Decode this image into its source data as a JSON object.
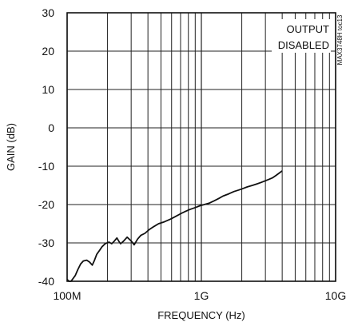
{
  "chart_data": {
    "type": "line",
    "title": "",
    "xlabel": "FREQUENCY (Hz)",
    "ylabel": "GAIN (dB)",
    "x_scale": "log",
    "xlim": [
      100000000,
      10000000000
    ],
    "ylim": [
      -40,
      30
    ],
    "x_tick_labels": [
      {
        "value": 100000000,
        "label": "100M"
      },
      {
        "value": 1000000000,
        "label": "1G"
      },
      {
        "value": 10000000000,
        "label": "10G"
      }
    ],
    "y_ticks": [
      30,
      20,
      10,
      0,
      -10,
      -20,
      -30,
      -40
    ],
    "y_tick_labels": [
      "30",
      "20",
      "10",
      "0",
      "-10",
      "-20",
      "-30",
      "-40"
    ],
    "grid": true,
    "annotation_lines": [
      "OUTPUT",
      "DISABLED"
    ],
    "side_label": "MAX3748H toc13",
    "line_color": "#111111",
    "series": [
      {
        "points": [
          [
            100000000,
            -39.5
          ],
          [
            103000000,
            -40.0
          ],
          [
            107000000,
            -40.0
          ],
          [
            115000000,
            -38.5
          ],
          [
            120000000,
            -37.0
          ],
          [
            126000000,
            -35.5
          ],
          [
            132000000,
            -34.7
          ],
          [
            140000000,
            -34.5
          ],
          [
            147000000,
            -35.0
          ],
          [
            154000000,
            -35.8
          ],
          [
            160000000,
            -34.5
          ],
          [
            166000000,
            -33.0
          ],
          [
            174000000,
            -32.0
          ],
          [
            182000000,
            -31.0
          ],
          [
            192000000,
            -30.2
          ],
          [
            205000000,
            -29.8
          ],
          [
            215000000,
            -30.2
          ],
          [
            225000000,
            -29.5
          ],
          [
            235000000,
            -28.7
          ],
          [
            242000000,
            -29.5
          ],
          [
            250000000,
            -30.2
          ],
          [
            262000000,
            -29.6
          ],
          [
            280000000,
            -28.5
          ],
          [
            300000000,
            -29.5
          ],
          [
            316000000,
            -30.5
          ],
          [
            335000000,
            -29.0
          ],
          [
            355000000,
            -28.0
          ],
          [
            380000000,
            -27.5
          ],
          [
            410000000,
            -26.5
          ],
          [
            440000000,
            -25.8
          ],
          [
            480000000,
            -25.0
          ],
          [
            530000000,
            -24.5
          ],
          [
            590000000,
            -23.8
          ],
          [
            650000000,
            -23.0
          ],
          [
            700000000,
            -22.4
          ],
          [
            760000000,
            -21.8
          ],
          [
            820000000,
            -21.3
          ],
          [
            900000000,
            -20.8
          ],
          [
            980000000,
            -20.3
          ],
          [
            1050000000,
            -20.0
          ],
          [
            1150000000,
            -19.6
          ],
          [
            1250000000,
            -19.0
          ],
          [
            1350000000,
            -18.4
          ],
          [
            1450000000,
            -17.8
          ],
          [
            1600000000,
            -17.2
          ],
          [
            1750000000,
            -16.6
          ],
          [
            1900000000,
            -16.2
          ],
          [
            2050000000,
            -15.8
          ],
          [
            2200000000,
            -15.4
          ],
          [
            2400000000,
            -15.0
          ],
          [
            2600000000,
            -14.6
          ],
          [
            2800000000,
            -14.2
          ],
          [
            3000000000,
            -13.8
          ],
          [
            3200000000,
            -13.4
          ],
          [
            3400000000,
            -13.0
          ],
          [
            3600000000,
            -12.4
          ],
          [
            3800000000,
            -11.8
          ],
          [
            4000000000,
            -11.2
          ]
        ]
      }
    ]
  }
}
